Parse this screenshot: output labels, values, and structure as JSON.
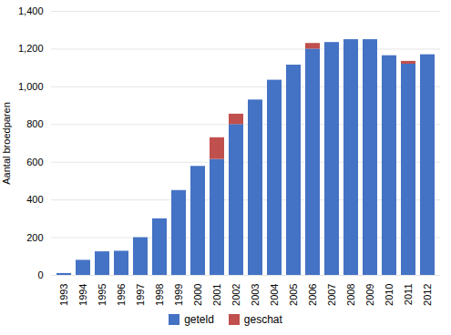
{
  "chart_data": {
    "type": "bar",
    "stacked": true,
    "categories": [
      "1993",
      "1994",
      "1995",
      "1996",
      "1997",
      "1998",
      "1999",
      "2000",
      "2001",
      "2002",
      "2003",
      "2004",
      "2005",
      "2006",
      "2007",
      "2008",
      "2009",
      "2010",
      "2011",
      "2012"
    ],
    "series": [
      {
        "name": "geteld",
        "color": "#4472C4",
        "values": [
          10,
          80,
          125,
          128,
          200,
          300,
          450,
          578,
          615,
          800,
          930,
          1035,
          1115,
          1200,
          1235,
          1250,
          1250,
          1165,
          1120,
          1170
        ]
      },
      {
        "name": "geschat",
        "color": "#C0504D",
        "values": [
          0,
          0,
          0,
          0,
          0,
          0,
          0,
          0,
          115,
          55,
          0,
          0,
          0,
          30,
          0,
          0,
          0,
          0,
          15,
          0
        ]
      }
    ],
    "ylabel": "Aantal broedparen",
    "ylim": [
      0,
      1400
    ],
    "yticks": [
      0,
      200,
      400,
      600,
      800,
      1000,
      1200,
      1400
    ],
    "grid": true,
    "legend": "bottom"
  }
}
